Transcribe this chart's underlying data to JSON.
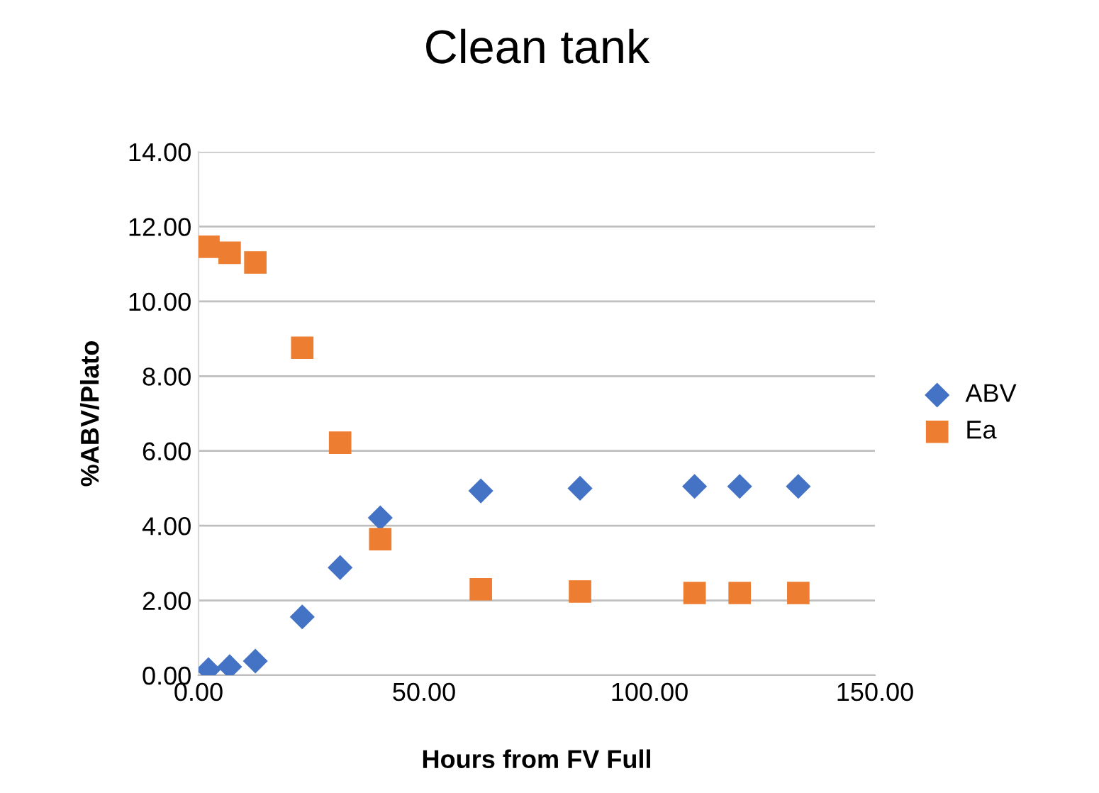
{
  "chart_data": {
    "type": "scatter",
    "title": "Clean tank",
    "xlabel": "Hours from FV Full",
    "ylabel": "%ABV/Plato",
    "x": [
      2.2,
      6.9,
      12.6,
      23,
      31.4,
      40.3,
      62.6,
      84.6,
      110,
      120,
      133
    ],
    "series": [
      {
        "name": "ABV",
        "color": "#4472c4",
        "marker": "diamond",
        "values": [
          0.15,
          0.23,
          0.38,
          1.56,
          2.88,
          4.21,
          4.93,
          5.0,
          5.05,
          5.05,
          5.05
        ]
      },
      {
        "name": "Ea",
        "color": "#ed7d31",
        "marker": "square",
        "values": [
          11.46,
          11.3,
          11.04,
          8.76,
          6.22,
          3.64,
          2.3,
          2.24,
          2.2,
          2.2,
          2.2
        ]
      }
    ],
    "xlim": [
      0,
      150
    ],
    "xticks": [
      {
        "value": 0,
        "label": "0.00"
      },
      {
        "value": 50,
        "label": "50.00"
      },
      {
        "value": 100,
        "label": "100.00"
      },
      {
        "value": 150,
        "label": "150.00"
      }
    ],
    "ylim": [
      0,
      14
    ],
    "yticks": [
      {
        "value": 0,
        "label": "0.00"
      },
      {
        "value": 2,
        "label": "2.00"
      },
      {
        "value": 4,
        "label": "4.00"
      },
      {
        "value": 6,
        "label": "6.00"
      },
      {
        "value": 8,
        "label": "8.00"
      },
      {
        "value": 10,
        "label": "10.00"
      },
      {
        "value": 12,
        "label": "12.00"
      },
      {
        "value": 14,
        "label": "14.00"
      }
    ],
    "grid": "y",
    "legend": "right"
  }
}
